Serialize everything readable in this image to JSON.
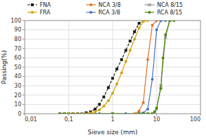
{
  "chart_data": {
    "type": "line",
    "xlabel": "Sieve size (mm)",
    "ylabel": "Passing(%)",
    "log": "x",
    "grid": true,
    "legend": "top",
    "xlim": [
      0.01,
      100
    ],
    "ylim": [
      0,
      100
    ],
    "xticks": [
      {
        "value": 0.01,
        "label": "0,01"
      },
      {
        "value": 0.1,
        "label": "0,1"
      },
      1,
      10,
      100
    ],
    "yticks": [
      0,
      10,
      20,
      30,
      40,
      50,
      60,
      70,
      80,
      90,
      100
    ],
    "series": [
      {
        "name": "FNA",
        "color": "#1a1a1a",
        "line_style": "dashed",
        "marker": "square",
        "x": [
          0.08,
          0.1,
          0.125,
          0.16,
          0.2,
          0.25,
          0.315,
          0.4,
          0.5,
          0.63,
          0.8,
          1.0,
          1.25,
          1.6,
          2.0,
          2.5,
          3.15,
          4.0,
          5.0
        ],
        "values": [
          0,
          0,
          0,
          0,
          0,
          1,
          2,
          5,
          10,
          18,
          28,
          38,
          48,
          58,
          68,
          78,
          88,
          97,
          100
        ]
      },
      {
        "name": "NCA 3/8",
        "color": "#e07020",
        "line_style": "solid",
        "marker": "circle",
        "x": [
          0.063,
          0.08,
          0.1,
          0.5,
          1.0,
          2.0,
          3.15,
          4.0,
          5.0,
          6.3,
          8.0,
          10.0,
          12.5
        ],
        "values": [
          0,
          0,
          0,
          0,
          0,
          0,
          0,
          3,
          12,
          58,
          95,
          100,
          100
        ]
      },
      {
        "name": "NCA 8/15",
        "color": "#909090",
        "line_style": "solid",
        "marker": "x",
        "x": [
          0.063,
          0.08,
          1.0,
          4.0,
          5.0,
          6.3,
          8.0,
          9.0,
          10.0,
          12.5,
          16.0,
          20.0
        ],
        "values": [
          0,
          0,
          0,
          0,
          0,
          0,
          0,
          1,
          5,
          30,
          82,
          100
        ]
      },
      {
        "name": "FRA",
        "color": "#d4a000",
        "line_style": "solid",
        "marker": "circle",
        "x": [
          0.063,
          0.08,
          0.1,
          0.125,
          0.16,
          0.2,
          0.25,
          0.315,
          0.4,
          0.5,
          0.63,
          0.8,
          1.0,
          1.25,
          1.6,
          2.0,
          2.5,
          3.15,
          4.0,
          5.0,
          6.3
        ],
        "values": [
          0,
          0,
          0,
          0,
          0,
          0,
          0,
          1,
          2,
          4,
          8,
          14,
          22,
          32,
          44,
          56,
          68,
          80,
          92,
          99,
          100
        ]
      },
      {
        "name": "RCA 3/8",
        "color": "#4472c4",
        "line_style": "solid",
        "marker": "circle",
        "x": [
          0.063,
          0.08,
          0.5,
          1.0,
          2.0,
          4.0,
          5.0,
          6.3,
          8.0,
          10.0,
          12.5,
          16.0
        ],
        "values": [
          0,
          0,
          0,
          0,
          0,
          0,
          1,
          5,
          37,
          90,
          100,
          100
        ]
      },
      {
        "name": "RCA 8/15",
        "color": "#4e8a00",
        "line_style": "solid",
        "marker": "circle",
        "x": [
          0.063,
          0.08,
          1.0,
          4.0,
          5.0,
          6.3,
          8.0,
          9.0,
          10.0,
          12.5,
          14.0,
          16.0,
          20.0,
          25.0
        ],
        "values": [
          0,
          0,
          0,
          0,
          0,
          0,
          0,
          2,
          6,
          27,
          60,
          85,
          100,
          100
        ]
      }
    ]
  }
}
